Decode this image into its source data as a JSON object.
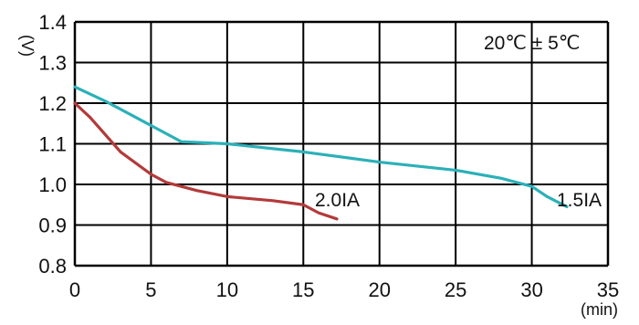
{
  "chart_data": {
    "type": "line",
    "xlabel": "(min)",
    "ylabel": "(V)",
    "annotation": "20℃ ± 5℃",
    "xlim": [
      0,
      35
    ],
    "ylim": [
      0.8,
      1.4
    ],
    "x_ticks": [
      "0",
      "5",
      "10",
      "15",
      "20",
      "25",
      "30",
      "35"
    ],
    "y_ticks": [
      "0.8",
      "0.9",
      "1.0",
      "1.1",
      "1.2",
      "1.3",
      "1.4"
    ],
    "grid": true,
    "colors": {
      "series_1": "#2bb0b8",
      "series_2": "#b33a3a",
      "grid": "#000000"
    },
    "series": [
      {
        "name": "1.5IA",
        "x": [
          0,
          2,
          4,
          6,
          7,
          10,
          15,
          20,
          25,
          28,
          30,
          31,
          32.3
        ],
        "y": [
          1.24,
          1.205,
          1.165,
          1.125,
          1.105,
          1.1,
          1.08,
          1.055,
          1.035,
          1.015,
          0.995,
          0.97,
          0.945
        ]
      },
      {
        "name": "2.0IA",
        "x": [
          0,
          1,
          3,
          5,
          6,
          8,
          10,
          13,
          15,
          16,
          17.2
        ],
        "y": [
          1.2,
          1.165,
          1.08,
          1.025,
          1.005,
          0.985,
          0.97,
          0.96,
          0.95,
          0.93,
          0.915
        ]
      }
    ]
  }
}
